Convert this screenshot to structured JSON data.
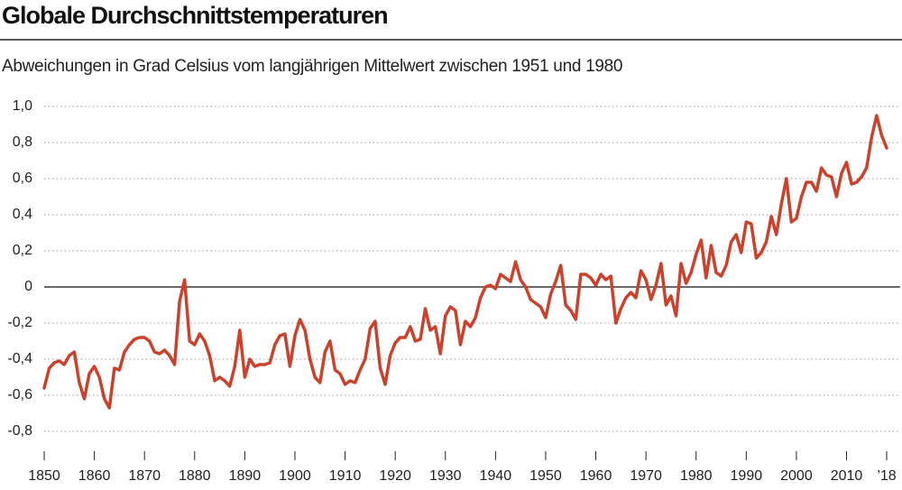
{
  "chart_data": {
    "type": "line",
    "title": "Globale Durchschnittstemperaturen",
    "subtitle": "Abweichungen in Grad Celsius vom langjährigen Mittelwert zwischen 1951 und 1980",
    "x": [
      1850,
      1851,
      1852,
      1853,
      1854,
      1855,
      1856,
      1857,
      1858,
      1859,
      1860,
      1861,
      1862,
      1863,
      1864,
      1865,
      1866,
      1867,
      1868,
      1869,
      1870,
      1871,
      1872,
      1873,
      1874,
      1875,
      1876,
      1877,
      1878,
      1879,
      1880,
      1881,
      1882,
      1883,
      1884,
      1885,
      1886,
      1887,
      1888,
      1889,
      1890,
      1891,
      1892,
      1893,
      1894,
      1895,
      1896,
      1897,
      1898,
      1899,
      1900,
      1901,
      1902,
      1903,
      1904,
      1905,
      1906,
      1907,
      1908,
      1909,
      1910,
      1911,
      1912,
      1913,
      1914,
      1915,
      1916,
      1917,
      1918,
      1919,
      1920,
      1921,
      1922,
      1923,
      1924,
      1925,
      1926,
      1927,
      1928,
      1929,
      1930,
      1931,
      1932,
      1933,
      1934,
      1935,
      1936,
      1937,
      1938,
      1939,
      1940,
      1941,
      1942,
      1943,
      1944,
      1945,
      1946,
      1947,
      1948,
      1949,
      1950,
      1951,
      1952,
      1953,
      1954,
      1955,
      1956,
      1957,
      1958,
      1959,
      1960,
      1961,
      1962,
      1963,
      1964,
      1965,
      1966,
      1967,
      1968,
      1969,
      1970,
      1971,
      1972,
      1973,
      1974,
      1975,
      1976,
      1977,
      1978,
      1979,
      1980,
      1981,
      1982,
      1983,
      1984,
      1985,
      1986,
      1987,
      1988,
      1989,
      1990,
      1991,
      1992,
      1993,
      1994,
      1995,
      1996,
      1997,
      1998,
      1999,
      2000,
      2001,
      2002,
      2003,
      2004,
      2005,
      2006,
      2007,
      2008,
      2009,
      2010,
      2011,
      2012,
      2013,
      2014,
      2015,
      2016,
      2017,
      2018
    ],
    "values": [
      -0.56,
      -0.45,
      -0.42,
      -0.41,
      -0.43,
      -0.38,
      -0.36,
      -0.53,
      -0.62,
      -0.48,
      -0.44,
      -0.5,
      -0.62,
      -0.67,
      -0.45,
      -0.46,
      -0.36,
      -0.32,
      -0.29,
      -0.28,
      -0.28,
      -0.3,
      -0.36,
      -0.37,
      -0.35,
      -0.38,
      -0.43,
      -0.08,
      0.04,
      -0.3,
      -0.32,
      -0.26,
      -0.3,
      -0.38,
      -0.52,
      -0.5,
      -0.52,
      -0.55,
      -0.44,
      -0.24,
      -0.5,
      -0.4,
      -0.44,
      -0.43,
      -0.43,
      -0.42,
      -0.32,
      -0.27,
      -0.26,
      -0.44,
      -0.27,
      -0.18,
      -0.24,
      -0.4,
      -0.5,
      -0.53,
      -0.36,
      -0.3,
      -0.46,
      -0.48,
      -0.54,
      -0.52,
      -0.53,
      -0.46,
      -0.4,
      -0.23,
      -0.19,
      -0.45,
      -0.54,
      -0.38,
      -0.31,
      -0.28,
      -0.28,
      -0.22,
      -0.3,
      -0.29,
      -0.12,
      -0.24,
      -0.22,
      -0.37,
      -0.16,
      -0.11,
      -0.13,
      -0.32,
      -0.19,
      -0.22,
      -0.17,
      -0.06,
      0.0,
      0.01,
      -0.01,
      0.07,
      0.05,
      0.03,
      0.14,
      0.04,
      0.0,
      -0.07,
      -0.09,
      -0.11,
      -0.17,
      -0.04,
      0.03,
      0.12,
      -0.1,
      -0.13,
      -0.18,
      0.07,
      0.07,
      0.05,
      0.01,
      0.07,
      0.04,
      0.06,
      -0.2,
      -0.12,
      -0.06,
      -0.03,
      -0.06,
      0.09,
      0.04,
      -0.07,
      0.01,
      0.13,
      -0.1,
      -0.05,
      -0.16,
      0.13,
      0.02,
      0.08,
      0.18,
      0.26,
      0.05,
      0.23,
      0.08,
      0.06,
      0.12,
      0.25,
      0.29,
      0.19,
      0.36,
      0.35,
      0.16,
      0.19,
      0.25,
      0.39,
      0.29,
      0.46,
      0.6,
      0.36,
      0.38,
      0.5,
      0.58,
      0.58,
      0.53,
      0.66,
      0.62,
      0.61,
      0.5,
      0.63,
      0.69,
      0.57,
      0.58,
      0.61,
      0.66,
      0.83,
      0.95,
      0.84,
      0.77
    ],
    "color": "#cc412b",
    "xlim": [
      1850,
      2018
    ],
    "xticks": [
      1850,
      1860,
      1870,
      1880,
      1890,
      1900,
      1910,
      1920,
      1930,
      1940,
      1950,
      1960,
      1970,
      1980,
      1990,
      2000,
      2010,
      {
        "value": 2018,
        "label": "’18"
      }
    ],
    "ylim": [
      -0.8,
      1.0
    ],
    "yticks": [
      {
        "value": 1.0,
        "label": "1,0"
      },
      {
        "value": 0.8,
        "label": "0,8"
      },
      {
        "value": 0.6,
        "label": "0,6"
      },
      {
        "value": 0.4,
        "label": "0,4"
      },
      {
        "value": 0.2,
        "label": "0,2"
      },
      0,
      {
        "value": -0.2,
        "label": "-0,2"
      },
      {
        "value": -0.4,
        "label": "-0,4"
      },
      {
        "value": -0.6,
        "label": "-0,6"
      },
      {
        "value": -0.8,
        "label": "-0,8"
      }
    ],
    "grid": true
  }
}
